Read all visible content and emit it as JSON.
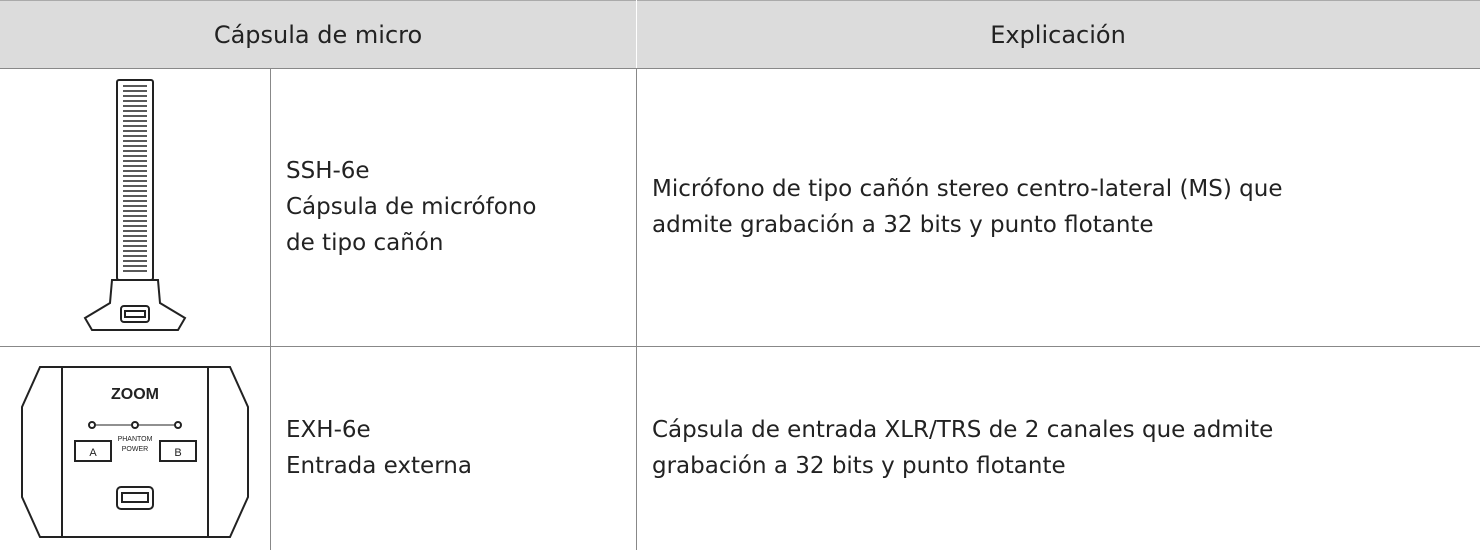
{
  "table": {
    "header": [
      "Cápsula de micro",
      "Explicación"
    ],
    "rows": [
      {
        "name": [
          "SSH-6e",
          "Cápsula de micrófono",
          "de tipo cañón"
        ],
        "description": [
          "Micrófono de tipo cañón stereo centro-lateral (MS) que",
          "admite grabación a 32 bits y punto flotante"
        ],
        "image_labels": []
      },
      {
        "name": [
          "EXH-6e",
          "Entrada externa"
        ],
        "description": [
          "Cápsula de entrada XLR/TRS de 2 canales que admite",
          "grabación a 32 bits y punto flotante"
        ],
        "image_labels": [
          "ZOOM",
          "A",
          "B",
          "PHANTOM",
          "POWER"
        ]
      }
    ]
  }
}
